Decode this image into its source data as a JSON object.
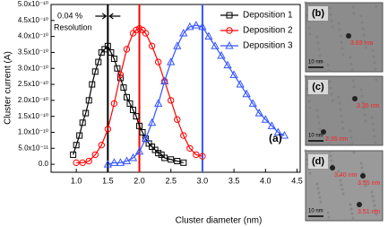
{
  "chart_data": {
    "type": "line",
    "xlabel": "Cluster diameter (nm)",
    "ylabel": "Cluster current (A)",
    "xlim": [
      0.6,
      4.55
    ],
    "ylim": [
      -2.5e-11,
      5e-10
    ],
    "xticks": [
      {
        "value": 1,
        "label": "1.0"
      },
      1.5,
      {
        "value": 2,
        "label": "2.0"
      },
      2.5,
      {
        "value": 3,
        "label": "3.0"
      },
      3.5,
      {
        "value": 4,
        "label": "4.0"
      },
      4.5
    ],
    "yticks": [
      {
        "value": 0,
        "label": "0.0"
      },
      {
        "value": 5e-11,
        "label": "5.0x10⁻¹¹"
      },
      {
        "value": 1e-10,
        "label": "1.0x10⁻¹⁰"
      },
      {
        "value": 1.5e-10,
        "label": "1.5x10⁻¹⁰"
      },
      {
        "value": 2e-10,
        "label": "2.0x10⁻¹⁰"
      },
      {
        "value": 2.5e-10,
        "label": "2.5x10⁻¹⁰"
      },
      {
        "value": 3e-10,
        "label": "3.0x10⁻¹⁰"
      },
      {
        "value": 3.5e-10,
        "label": "3.5x10⁻¹⁰"
      },
      {
        "value": 4e-10,
        "label": "4.0x10⁻¹⁰"
      },
      {
        "value": 4.5e-10,
        "label": "4.5x10⁻¹⁰"
      },
      {
        "value": 5e-10,
        "label": "5.0x10⁻¹⁰"
      }
    ],
    "legend": "upper right",
    "series": [
      {
        "name": "Deposition 1",
        "color": "#000000",
        "marker": "square",
        "x": [
          0.95,
          1.0,
          1.05,
          1.1,
          1.15,
          1.2,
          1.25,
          1.3,
          1.35,
          1.4,
          1.45,
          1.5,
          1.55,
          1.6,
          1.65,
          1.7,
          1.75,
          1.8,
          1.85,
          1.9,
          1.95,
          2.0,
          2.05,
          2.1,
          2.15,
          2.2,
          2.25,
          2.3,
          2.35,
          2.4,
          2.5,
          2.6,
          2.7
        ],
        "values": [
          3e-11,
          6e-11,
          9e-11,
          1.3e-10,
          1.6e-10,
          2e-10,
          2.5e-10,
          2.9e-10,
          3.2e-10,
          3.5e-10,
          3.6e-10,
          3.7e-10,
          3.5e-10,
          3.3e-10,
          3e-10,
          2.7e-10,
          2.4e-10,
          2.1e-10,
          1.9e-10,
          1.7e-10,
          1.5e-10,
          1.2e-10,
          1e-10,
          8e-11,
          6.5e-11,
          5.5e-11,
          4.5e-11,
          3.5e-11,
          3e-11,
          2e-11,
          1.5e-11,
          1e-11,
          5e-12
        ]
      },
      {
        "name": "Deposition 2",
        "color": "#ff0000",
        "marker": "circle",
        "x": [
          1.0,
          1.1,
          1.2,
          1.3,
          1.4,
          1.5,
          1.6,
          1.7,
          1.8,
          1.9,
          1.95,
          2.0,
          2.05,
          2.1,
          2.2,
          2.3,
          2.4,
          2.5,
          2.6,
          2.7,
          2.8,
          2.9,
          3.0
        ],
        "values": [
          5e-12,
          5e-12,
          1e-11,
          3e-11,
          6e-11,
          1.1e-10,
          1.9e-10,
          2.8e-10,
          3.6e-10,
          4.1e-10,
          4.2e-10,
          4.25e-10,
          4.2e-10,
          4.1e-10,
          3.7e-10,
          3.2e-10,
          2.6e-10,
          2e-10,
          1.4e-10,
          9e-11,
          5e-11,
          3e-11,
          2.5e-11
        ]
      },
      {
        "name": "Deposition 3",
        "color": "#3355ff",
        "marker": "triangle",
        "x": [
          1.5,
          1.6,
          1.7,
          1.8,
          1.9,
          2.0,
          2.1,
          2.2,
          2.3,
          2.4,
          2.5,
          2.6,
          2.7,
          2.8,
          2.9,
          3.0,
          3.1,
          3.2,
          3.3,
          3.4,
          3.5,
          3.6,
          3.7,
          3.8,
          3.9,
          4.0,
          4.1,
          4.2,
          4.3
        ],
        "values": [
          0,
          5e-12,
          5e-12,
          1e-11,
          2e-11,
          4e-11,
          8e-11,
          1.3e-10,
          1.9e-10,
          2.6e-10,
          3.2e-10,
          3.7e-10,
          4.1e-10,
          4.3e-10,
          4.35e-10,
          4.3e-10,
          4e-10,
          3.7e-10,
          3.4e-10,
          3.1e-10,
          2.8e-10,
          2.5e-10,
          2.2e-10,
          1.9e-10,
          1.6e-10,
          1.4e-10,
          1.2e-10,
          1e-10,
          9e-11
        ]
      }
    ],
    "vlines": [
      {
        "x": 1.5,
        "color": "#000000"
      },
      {
        "x": 2.0,
        "color": "#ff0000"
      },
      {
        "x": 3.0,
        "color": "#3355ff"
      }
    ],
    "annotations": [
      "0.04 %",
      "Resolution",
      "(a)"
    ]
  },
  "insets": [
    {
      "label": "(b)",
      "scale": "10 nm",
      "sizes": [
        "3.63 nm"
      ]
    },
    {
      "label": "(c)",
      "scale": "10 nm",
      "sizes": [
        "3.35 nm",
        "2.35 nm"
      ]
    },
    {
      "label": "(d)",
      "scale": "10 nm",
      "sizes": [
        "3.40 nm",
        "3.55 nm",
        "3.51 nm"
      ]
    }
  ]
}
